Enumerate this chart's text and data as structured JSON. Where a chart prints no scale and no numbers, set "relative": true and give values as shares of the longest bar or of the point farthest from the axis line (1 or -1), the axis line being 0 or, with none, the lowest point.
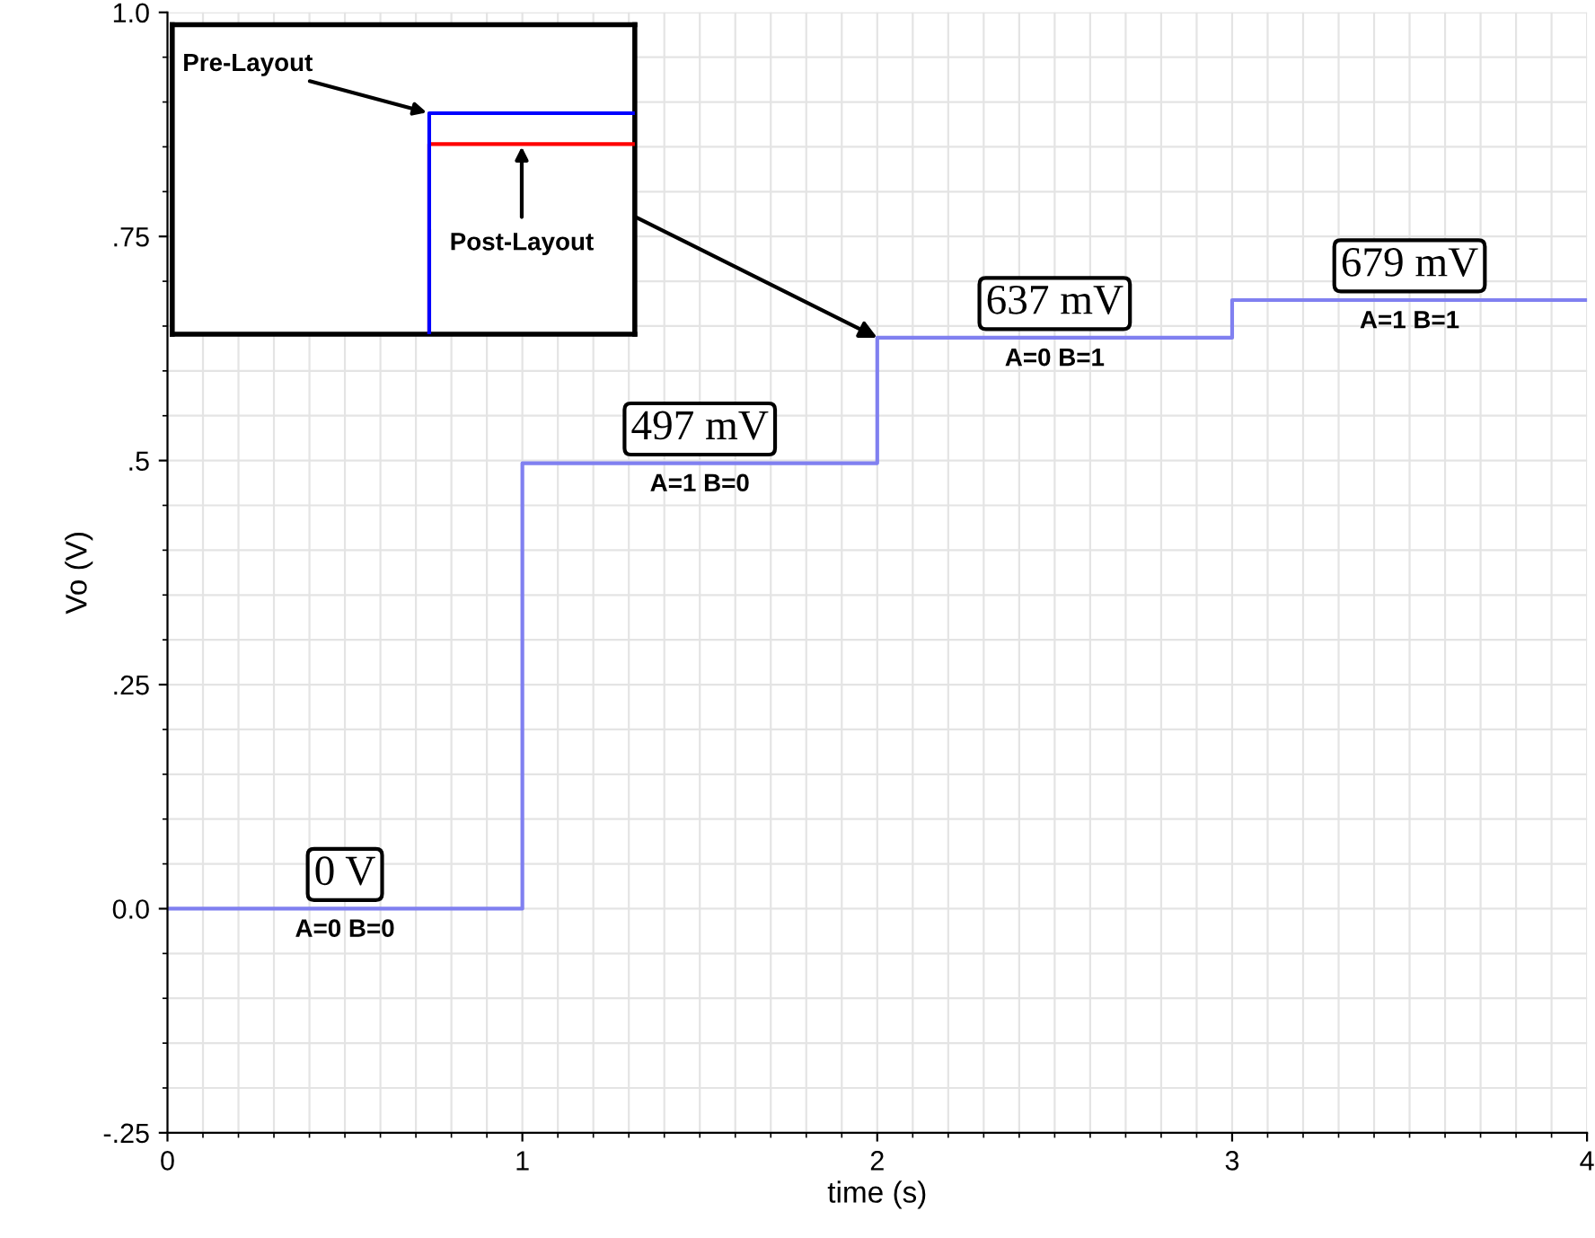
{
  "chart_data": [
    {
      "type": "step",
      "xlabel": "time (s)",
      "ylabel": "Vo (V)",
      "x": [
        0,
        1,
        2,
        3,
        4
      ],
      "series": [
        {
          "color": "#8080f0",
          "values": [
            0,
            0.497,
            0.637,
            0.679,
            0.679
          ]
        }
      ],
      "xlim": [
        0,
        4
      ],
      "xticks": [
        0,
        1,
        2,
        3,
        4
      ],
      "ylim": [
        -0.25,
        1.0
      ],
      "yticks": [
        {
          "value": -0.25,
          "label": "-.25"
        },
        {
          "value": 0,
          "label": "0.0"
        },
        {
          "value": 0.25,
          "label": ".25"
        },
        {
          "value": 0.5,
          "label": ".5"
        },
        {
          "value": 0.75,
          "label": ".75"
        },
        {
          "value": 1.0,
          "label": "1.0"
        }
      ],
      "grid": true,
      "annotations": [
        {
          "text": "0 V\nA=0 B=0",
          "x": 0.5,
          "y": 0
        },
        {
          "text": "497 mV\nA=1 B=0",
          "x": 1.5,
          "y": 0.497
        },
        {
          "text": "637 mV\nA=0 B=1",
          "x": 2.5,
          "y": 0.637
        },
        {
          "text": "679 mV\nA=1 B=1",
          "x": 3.5,
          "y": 0.679
        }
      ]
    },
    {
      "type": "step",
      "relative": true,
      "categories": [
        null,
        null
      ],
      "series": [
        {
          "color": "#0000ff",
          "values": [
            0,
            1
          ]
        },
        {
          "color": "#ff0000",
          "values": [
            0,
            0.86
          ]
        }
      ],
      "annotations": [
        "Pre-Layout",
        "Post-Layout"
      ]
    }
  ]
}
